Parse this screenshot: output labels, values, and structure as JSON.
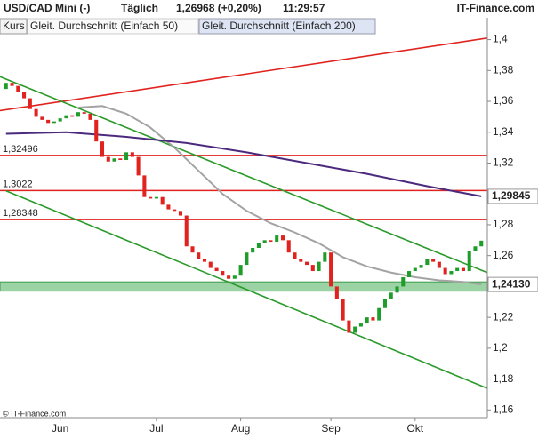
{
  "header": {
    "title": "USD/CAD Mini (-)",
    "interval": "Täglich",
    "price": "1,26968 (+0,20%)",
    "time": "11:29:57",
    "brand": "IT-Finance.com"
  },
  "footer": {
    "copyright": "© IT-Finance.com"
  },
  "chart_data": {
    "type": "candlestick",
    "candles": {
      "name": "Kurs",
      "up_color": "#1f9d2a",
      "down_color": "#e0231e",
      "open": [
        1.368,
        1.372,
        1.37,
        1.366,
        1.362,
        1.355,
        1.35,
        1.348,
        1.346,
        1.347,
        1.349,
        1.351,
        1.35,
        1.353,
        1.352,
        1.348,
        1.334,
        1.324,
        1.321,
        1.323,
        1.322,
        1.327,
        1.324,
        1.312,
        1.298,
        1.297,
        1.298,
        1.293,
        1.29,
        1.289,
        1.286,
        1.266,
        1.262,
        1.258,
        1.256,
        1.252,
        1.25,
        1.247,
        1.245,
        1.247,
        1.254,
        1.262,
        1.265,
        1.268,
        1.27,
        1.269,
        1.273,
        1.27,
        1.262,
        1.258,
        1.256,
        1.254,
        1.25,
        1.256,
        1.262,
        1.24,
        1.232,
        1.218,
        1.21,
        1.214,
        1.216,
        1.22,
        1.218,
        1.226,
        1.232,
        1.236,
        1.24,
        1.246,
        1.25,
        1.252,
        1.254,
        1.258,
        1.256,
        1.252,
        1.248,
        1.25,
        1.252,
        1.25,
        1.263,
        1.266
      ],
      "close": [
        1.372,
        1.37,
        1.366,
        1.362,
        1.355,
        1.35,
        1.348,
        1.346,
        1.347,
        1.349,
        1.351,
        1.35,
        1.353,
        1.352,
        1.348,
        1.334,
        1.324,
        1.321,
        1.323,
        1.322,
        1.327,
        1.324,
        1.312,
        1.298,
        1.297,
        1.298,
        1.293,
        1.29,
        1.289,
        1.286,
        1.266,
        1.262,
        1.258,
        1.256,
        1.252,
        1.25,
        1.247,
        1.245,
        1.247,
        1.254,
        1.262,
        1.265,
        1.268,
        1.27,
        1.269,
        1.273,
        1.27,
        1.262,
        1.258,
        1.256,
        1.254,
        1.25,
        1.256,
        1.262,
        1.24,
        1.232,
        1.218,
        1.21,
        1.214,
        1.216,
        1.22,
        1.218,
        1.226,
        1.232,
        1.236,
        1.24,
        1.246,
        1.25,
        1.252,
        1.254,
        1.258,
        1.256,
        1.252,
        1.248,
        1.25,
        1.252,
        1.25,
        1.263,
        1.266,
        1.2697
      ]
    },
    "series": [
      {
        "name": "Gleit. Durchschnitt (Einfach 50)",
        "color": "#a3a3a3",
        "x": [
          12,
          16,
          20,
          24,
          28,
          32,
          36,
          40,
          44,
          48,
          52,
          56,
          60,
          64,
          68,
          72,
          76,
          79
        ],
        "values": [
          1.356,
          1.357,
          1.352,
          1.343,
          1.33,
          1.315,
          1.3,
          1.289,
          1.281,
          1.275,
          1.268,
          1.259,
          1.253,
          1.249,
          1.246,
          1.244,
          1.243,
          1.2413
        ],
        "last_label": "1,24130"
      },
      {
        "name": "Gleit. Durchschnitt (Einfach 200)",
        "color": "#4b2a7e",
        "x": [
          0,
          10,
          20,
          30,
          40,
          50,
          60,
          70,
          79
        ],
        "values": [
          1.339,
          1.34,
          1.337,
          1.333,
          1.327,
          1.32,
          1.313,
          1.305,
          1.29845
        ],
        "last_label": "1,29845"
      }
    ],
    "levels": [
      {
        "value": 1.32496,
        "label": "1,32496"
      },
      {
        "value": 1.3022,
        "label": "1,3022"
      },
      {
        "value": 1.28348,
        "label": "1,28348"
      }
    ],
    "level_color": "#e0231e",
    "trendlines": [
      {
        "color": "#e0231e",
        "x": [
          -1,
          80
        ],
        "values": [
          1.354,
          1.401
        ]
      },
      {
        "color": "#2a9a2a",
        "x": [
          -1,
          80
        ],
        "values": [
          1.376,
          1.249
        ]
      },
      {
        "color": "#2a9a2a",
        "x": [
          0,
          80
        ],
        "values": [
          1.302,
          1.174
        ]
      }
    ],
    "zone": {
      "values": [
        1.237,
        1.243
      ],
      "color": "#9bd3a4"
    },
    "xlim": [
      -1,
      80
    ],
    "ylim": [
      1.155,
      1.413
    ],
    "xticks": [
      {
        "value": 9,
        "label": "Jun"
      },
      {
        "value": 25,
        "label": "Jul"
      },
      {
        "value": 39,
        "label": "Aug"
      },
      {
        "value": 54,
        "label": "Sep"
      },
      {
        "value": 68,
        "label": "Okt"
      }
    ],
    "yticks": [
      {
        "value": 1.16,
        "label": "1,16"
      },
      {
        "value": 1.18,
        "label": "1,18"
      },
      {
        "value": 1.2,
        "label": "1,2"
      },
      {
        "value": 1.22,
        "label": "1,22"
      },
      {
        "value": 1.26,
        "label": "1,26"
      },
      {
        "value": 1.28,
        "label": "1,28"
      },
      {
        "value": 1.32,
        "label": "1,32"
      },
      {
        "value": 1.34,
        "label": "1,34"
      },
      {
        "value": 1.36,
        "label": "1,36"
      },
      {
        "value": 1.38,
        "label": "1,38"
      },
      {
        "value": 1.4,
        "label": "1,4"
      }
    ]
  }
}
